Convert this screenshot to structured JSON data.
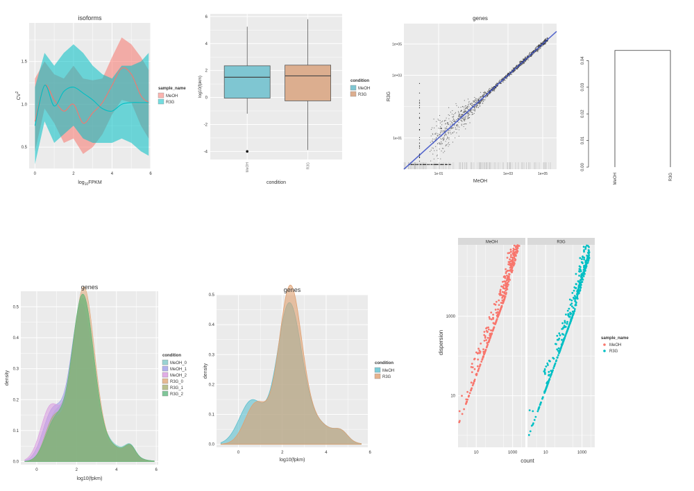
{
  "colors": {
    "red": "#F8766D",
    "teal": "#00BFC4",
    "boxTeal": "#7fc6d2",
    "boxTan": "#dcae8f",
    "panel": "#EBEBEB",
    "grid": "#ffffff",
    "blue": "#3a4fc7",
    "green": "#4a8a2a",
    "strip": "#d9d9d9"
  },
  "chart_data": [
    {
      "id": "cv2",
      "type": "area",
      "title": "isoforms",
      "xlabel_base": "log",
      "xlabel_sub": "10",
      "xlabel_rest": "FPKM",
      "ylabel_base": "CV",
      "ylabel_sup": "2",
      "xlim": [
        -0.3,
        6
      ],
      "ylim": [
        0.25,
        1.95
      ],
      "xticks": [
        "0",
        "2",
        "4",
        "6"
      ],
      "yticks": [
        "0.5",
        "1.0",
        "1.5"
      ],
      "legend_title": "sample_name",
      "series": [
        {
          "name": "MeOH",
          "color_key": "red",
          "x": [
            0,
            0.5,
            1,
            1.5,
            2,
            2.5,
            3,
            3.5,
            4,
            4.5,
            5,
            5.5,
            5.9
          ],
          "mean": [
            0.8,
            1.22,
            1.05,
            0.92,
            1.0,
            0.78,
            0.9,
            1.02,
            1.22,
            1.42,
            1.35,
            1.1,
            1.02
          ],
          "upper": [
            1.3,
            1.5,
            1.35,
            1.3,
            1.45,
            1.3,
            1.28,
            1.3,
            1.55,
            1.78,
            1.7,
            1.55,
            1.4
          ],
          "lower": [
            0.45,
            0.95,
            0.78,
            0.55,
            0.6,
            0.42,
            0.5,
            0.65,
            0.88,
            1.05,
            1.02,
            0.75,
            0.6
          ]
        },
        {
          "name": "R3G",
          "color_key": "teal",
          "x": [
            0,
            0.5,
            1,
            1.5,
            2,
            2.5,
            3,
            3.5,
            4,
            4.5,
            5,
            5.5,
            5.9
          ],
          "mean": [
            0.75,
            1.22,
            0.98,
            1.15,
            1.2,
            1.13,
            1.05,
            0.95,
            0.92,
            1.0,
            1.02,
            1.02,
            1.02
          ],
          "upper": [
            1.2,
            1.6,
            1.45,
            1.6,
            1.7,
            1.6,
            1.45,
            1.35,
            1.3,
            1.45,
            1.45,
            1.5,
            1.6
          ],
          "lower": [
            0.3,
            0.8,
            0.55,
            0.65,
            0.75,
            0.6,
            0.55,
            0.55,
            0.55,
            0.6,
            0.55,
            0.45,
            0.4
          ]
        }
      ]
    },
    {
      "id": "box",
      "type": "box",
      "xlabel": "condition",
      "ylabel": "log10(fpkm)",
      "ylim": [
        -4.6,
        6.2
      ],
      "yticks": [
        -4,
        -2,
        0,
        2,
        4,
        6
      ],
      "categories": [
        "MeOH",
        "R3G"
      ],
      "legend_title": "condition",
      "boxes": [
        {
          "name": "MeOH",
          "color_key": "boxTeal",
          "q1": -0.05,
          "median": 1.5,
          "q3": 2.35,
          "wlo": -1.2,
          "whi": 5.25,
          "outliers": [
            -4.0
          ]
        },
        {
          "name": "R3G",
          "color_key": "boxTan",
          "q1": -0.25,
          "median": 1.6,
          "q3": 2.4,
          "wlo": -3.9,
          "whi": 5.8,
          "outliers": []
        }
      ]
    },
    {
      "id": "scatter",
      "type": "scatter",
      "title": "genes",
      "xlabel": "MeOH",
      "ylabel": "R3G",
      "scale": "log10",
      "xlim": [
        -3,
        5.8
      ],
      "ylim": [
        -3,
        6.3
      ],
      "xticks": [
        "1e-01",
        "1e+03",
        "1e+05"
      ],
      "yticks": [
        "1e-01",
        "1e+03",
        "1e+05"
      ]
    },
    {
      "id": "dendro",
      "type": "dendrogram",
      "ylim": [
        0,
        0.044
      ],
      "yticks": [
        "0.00",
        "0.01",
        "0.02",
        "0.03",
        "0.04"
      ],
      "leaves": [
        "MeOH",
        "R3G"
      ],
      "merge_height": 0.0438
    },
    {
      "id": "dens1",
      "type": "area",
      "title": "genes",
      "xlabel": "log10(fpkm)",
      "ylabel": "density",
      "xlim": [
        -0.8,
        6.1
      ],
      "ylim": [
        -0.01,
        0.55
      ],
      "xticks": [
        "0",
        "2",
        "4",
        "6"
      ],
      "yticks": [
        "0.0",
        "0.1",
        "0.2",
        "0.3",
        "0.4",
        "0.5"
      ],
      "legend_title": "condition",
      "series": [
        {
          "name": "MeOH_0",
          "color": "#7fc8c8"
        },
        {
          "name": "MeOH_1",
          "color": "#9e9ee8"
        },
        {
          "name": "MeOH_2",
          "color": "#d999e0"
        },
        {
          "name": "R3G_0",
          "color": "#e0a878"
        },
        {
          "name": "R3G_1",
          "color": "#a8b070"
        },
        {
          "name": "R3G_2",
          "color": "#60b880"
        }
      ]
    },
    {
      "id": "dens2",
      "type": "area",
      "title": "genes",
      "xlabel": "log10(fpkm)",
      "ylabel": "density",
      "xlim": [
        -1,
        5.9
      ],
      "ylim": [
        -0.01,
        0.5
      ],
      "xticks": [
        "0",
        "2",
        "4",
        "6"
      ],
      "yticks": [
        "0.0",
        "0.1",
        "0.2",
        "0.3",
        "0.4",
        "0.5"
      ],
      "legend_title": "condition",
      "series": [
        {
          "name": "MeOH",
          "color": "#5cc0cf"
        },
        {
          "name": "R3G",
          "color": "#e0a070"
        }
      ]
    },
    {
      "id": "disp",
      "type": "scatter",
      "xlabel": "count",
      "ylabel": "dispersion",
      "scale": "log10",
      "xlim": [
        0,
        3.7
      ],
      "ylim": [
        -0.3,
        4.8
      ],
      "xticks": [
        "10",
        "1000"
      ],
      "yticks": [
        "10",
        "1000"
      ],
      "facets": [
        "MeOH",
        "R3G"
      ],
      "legend_title": "sample_name",
      "series": [
        {
          "name": "MeOH",
          "color_key": "red"
        },
        {
          "name": "R3G",
          "color_key": "teal"
        }
      ]
    }
  ]
}
